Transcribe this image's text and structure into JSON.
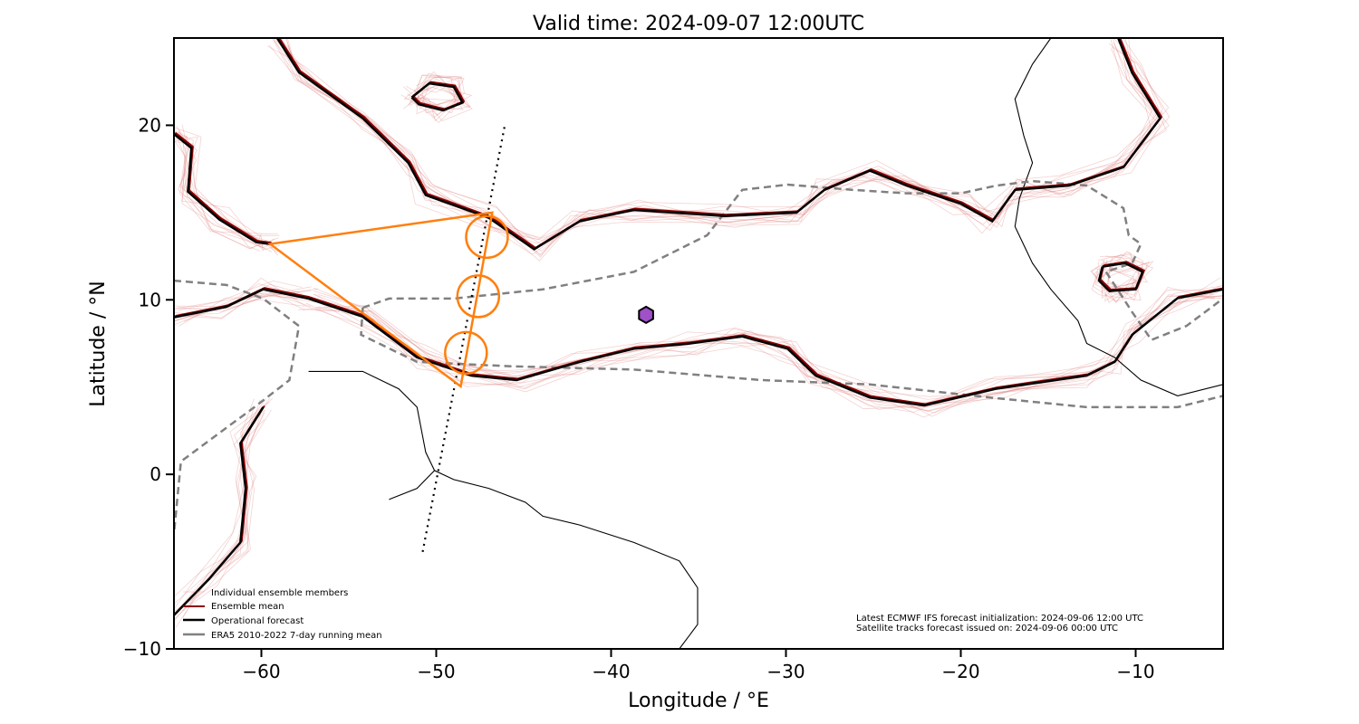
{
  "chart_data": {
    "type": "map",
    "title": "Valid time: 2024-09-07 12:00UTC",
    "xlabel": "Longitude / °E",
    "ylabel": "Latitude / °N",
    "xlim": [
      -65,
      -5
    ],
    "ylim": [
      -10,
      25
    ],
    "xticks": [
      -60,
      -50,
      -40,
      -30,
      -20,
      -10
    ],
    "yticks": [
      -10,
      0,
      10,
      20
    ],
    "grid": false,
    "legend_placement": "bottom-left",
    "legend": [
      {
        "label": "Individual ensemble members",
        "color": "#e08080"
      },
      {
        "label": "Ensemble mean",
        "color": "#8b0000"
      },
      {
        "label": "Operational forecast",
        "color": "#000000"
      },
      {
        "label": "ERA5 2010-2022 7-day running mean",
        "color": "#808080"
      }
    ],
    "annotations": [
      "Latest ECMWF IFS forecast initialization: 2024-09-06 12:00 UTC",
      "Satellite tracks forecast issued on: 2024-09-06 00:00 UTC"
    ],
    "operational_contours": [
      [
        [
          -59.1,
          25
        ],
        [
          -57.85,
          23.03
        ],
        [
          -54.2,
          20.4
        ],
        [
          -51.6,
          17.85
        ],
        [
          -50.6,
          16.0
        ],
        [
          -47.0,
          14.7
        ],
        [
          -44.4,
          12.9
        ],
        [
          -41.8,
          14.5
        ],
        [
          -38.7,
          15.15
        ],
        [
          -33.5,
          14.8
        ],
        [
          -29.4,
          15.0
        ],
        [
          -27.8,
          16.3
        ],
        [
          -25.2,
          17.4
        ],
        [
          -23.1,
          16.55
        ],
        [
          -20.0,
          15.5
        ],
        [
          -18.2,
          14.5
        ],
        [
          -16.9,
          16.3
        ],
        [
          -13.8,
          16.55
        ],
        [
          -10.7,
          17.6
        ],
        [
          -8.6,
          20.4
        ],
        [
          -10.2,
          23.0
        ],
        [
          -11.0,
          25
        ]
      ],
      [
        [
          -57.3,
          10.07
        ],
        [
          -54.2,
          9.03
        ],
        [
          -51.1,
          6.7
        ],
        [
          -48.0,
          5.66
        ],
        [
          -45.4,
          5.4
        ],
        [
          -41.8,
          6.44
        ],
        [
          -38.7,
          7.2
        ],
        [
          -35.6,
          7.48
        ],
        [
          -32.5,
          7.9
        ],
        [
          -29.9,
          7.2
        ],
        [
          -28.3,
          5.66
        ],
        [
          -25.2,
          4.4
        ],
        [
          -22.1,
          3.95
        ],
        [
          -18.0,
          4.9
        ],
        [
          -12.8,
          5.66
        ],
        [
          -11.2,
          6.44
        ],
        [
          -10.2,
          8.0
        ],
        [
          -7.6,
          10.1
        ],
        [
          -5,
          10.6
        ]
      ],
      [
        [
          -65,
          -8.07
        ],
        [
          -63,
          -6.0
        ],
        [
          -61.2,
          -3.9
        ],
        [
          -60.9,
          -0.8
        ],
        [
          -61.2,
          1.78
        ],
        [
          -59.9,
          3.85
        ]
      ],
      [
        [
          -65,
          19.5
        ],
        [
          -64,
          18.7
        ],
        [
          -64.2,
          16.2
        ],
        [
          -62.4,
          14.6
        ],
        [
          -60.3,
          13.3
        ],
        [
          -59.5,
          13.2
        ]
      ],
      [
        [
          -65,
          9.0
        ],
        [
          -62,
          9.6
        ],
        [
          -59.9,
          10.6
        ],
        [
          -57.3,
          10.07
        ]
      ],
      [
        [
          -51.4,
          21.6
        ],
        [
          -50.4,
          22.4
        ],
        [
          -49.0,
          22.2
        ],
        [
          -48.5,
          21.3
        ],
        [
          -49.6,
          20.85
        ],
        [
          -51.0,
          21.2
        ],
        [
          -51.4,
          21.6
        ]
      ],
      [
        [
          -11.9,
          11.9
        ],
        [
          -10.6,
          12.1
        ],
        [
          -9.6,
          11.6
        ],
        [
          -10.0,
          10.6
        ],
        [
          -11.5,
          10.5
        ],
        [
          -12.1,
          11.1
        ],
        [
          -11.9,
          11.9
        ]
      ]
    ],
    "era5_contours": [
      [
        [
          -54.2,
          9.55
        ],
        [
          -52.7,
          10.07
        ],
        [
          -49.0,
          10.07
        ],
        [
          -43.9,
          10.6
        ],
        [
          -38.7,
          11.6
        ],
        [
          -34.5,
          13.7
        ],
        [
          -32.5,
          16.3
        ],
        [
          -29.9,
          16.6
        ],
        [
          -26.2,
          16.3
        ],
        [
          -23.1,
          16.1
        ],
        [
          -20.0,
          16.1
        ],
        [
          -17.95,
          16.55
        ],
        [
          -15.9,
          16.8
        ],
        [
          -12.8,
          16.55
        ],
        [
          -10.7,
          15.25
        ],
        [
          -10.4,
          13.7
        ],
        [
          -9.7,
          13.2
        ],
        [
          -10.2,
          12.1
        ],
        [
          -11.7,
          11.6
        ],
        [
          -10.7,
          10.07
        ],
        [
          -10.2,
          9.3
        ],
        [
          -9.1,
          7.7
        ],
        [
          -7.1,
          8.5
        ],
        [
          -5,
          10.07
        ]
      ],
      [
        [
          -54.2,
          9.55
        ],
        [
          -54.3,
          8.0
        ],
        [
          -51.1,
          6.44
        ],
        [
          -45.9,
          6.2
        ],
        [
          -38.7,
          6.0
        ],
        [
          -31.4,
          5.4
        ],
        [
          -25.2,
          5.15
        ],
        [
          -18.0,
          4.37
        ],
        [
          -12.8,
          3.85
        ],
        [
          -7.6,
          3.85
        ],
        [
          -5,
          4.5
        ]
      ],
      [
        [
          -65,
          11.1
        ],
        [
          -62.0,
          10.85
        ],
        [
          -59.9,
          10.07
        ],
        [
          -57.85,
          8.5
        ],
        [
          -58.4,
          5.4
        ],
        [
          -60.4,
          3.85
        ],
        [
          -62.5,
          2.3
        ],
        [
          -64.6,
          0.74
        ],
        [
          -65,
          -3.4
        ]
      ]
    ],
    "coastlines": [
      [
        [
          -57.3,
          5.9
        ],
        [
          -54.2,
          5.9
        ],
        [
          -52.15,
          4.9
        ],
        [
          -51.1,
          3.85
        ],
        [
          -50.6,
          1.26
        ],
        [
          -50.1,
          0.22
        ],
        [
          -49.0,
          -0.3
        ],
        [
          -47.0,
          -0.8
        ],
        [
          -44.9,
          -1.6
        ],
        [
          -43.9,
          -2.4
        ],
        [
          -41.8,
          -2.9
        ],
        [
          -38.7,
          -3.9
        ],
        [
          -36.1,
          -4.96
        ],
        [
          -35.05,
          -6.5
        ],
        [
          -35.05,
          -8.6
        ],
        [
          -36.1,
          -10
        ]
      ],
      [
        [
          -52.7,
          -1.44
        ],
        [
          -51.1,
          -0.8
        ],
        [
          -50.1,
          0.22
        ]
      ],
      [
        [
          -14.85,
          25
        ],
        [
          -15.9,
          23.5
        ],
        [
          -16.9,
          21.5
        ],
        [
          -16.4,
          19.4
        ],
        [
          -15.9,
          17.85
        ],
        [
          -16.65,
          15.8
        ],
        [
          -16.9,
          14.2
        ],
        [
          -15.9,
          12.1
        ],
        [
          -14.85,
          10.6
        ],
        [
          -13.3,
          8.8
        ],
        [
          -12.8,
          7.5
        ],
        [
          -11.2,
          6.7
        ],
        [
          -9.7,
          5.4
        ],
        [
          -7.6,
          4.5
        ],
        [
          -5,
          5.15
        ]
      ]
    ],
    "satellite_track": [
      [
        -46.1,
        19.9
      ],
      [
        -50.8,
        -4.55
      ]
    ],
    "target_triangle": [
      [
        -59.5,
        13.2
      ],
      [
        -46.8,
        15.0
      ],
      [
        -48.6,
        5.04
      ]
    ],
    "target_circles": [
      [
        -47.1,
        13.6
      ],
      [
        -47.6,
        10.2
      ],
      [
        -48.3,
        6.96
      ]
    ],
    "marker": {
      "shape": "hexagon",
      "lon": -38.0,
      "lat": 9.14,
      "color": "#a050c8"
    },
    "colors": {
      "members": "#e08080",
      "mean": "#8b0000",
      "operational": "#000000",
      "era5": "#808080",
      "triangle": "#ff7f0e"
    }
  }
}
